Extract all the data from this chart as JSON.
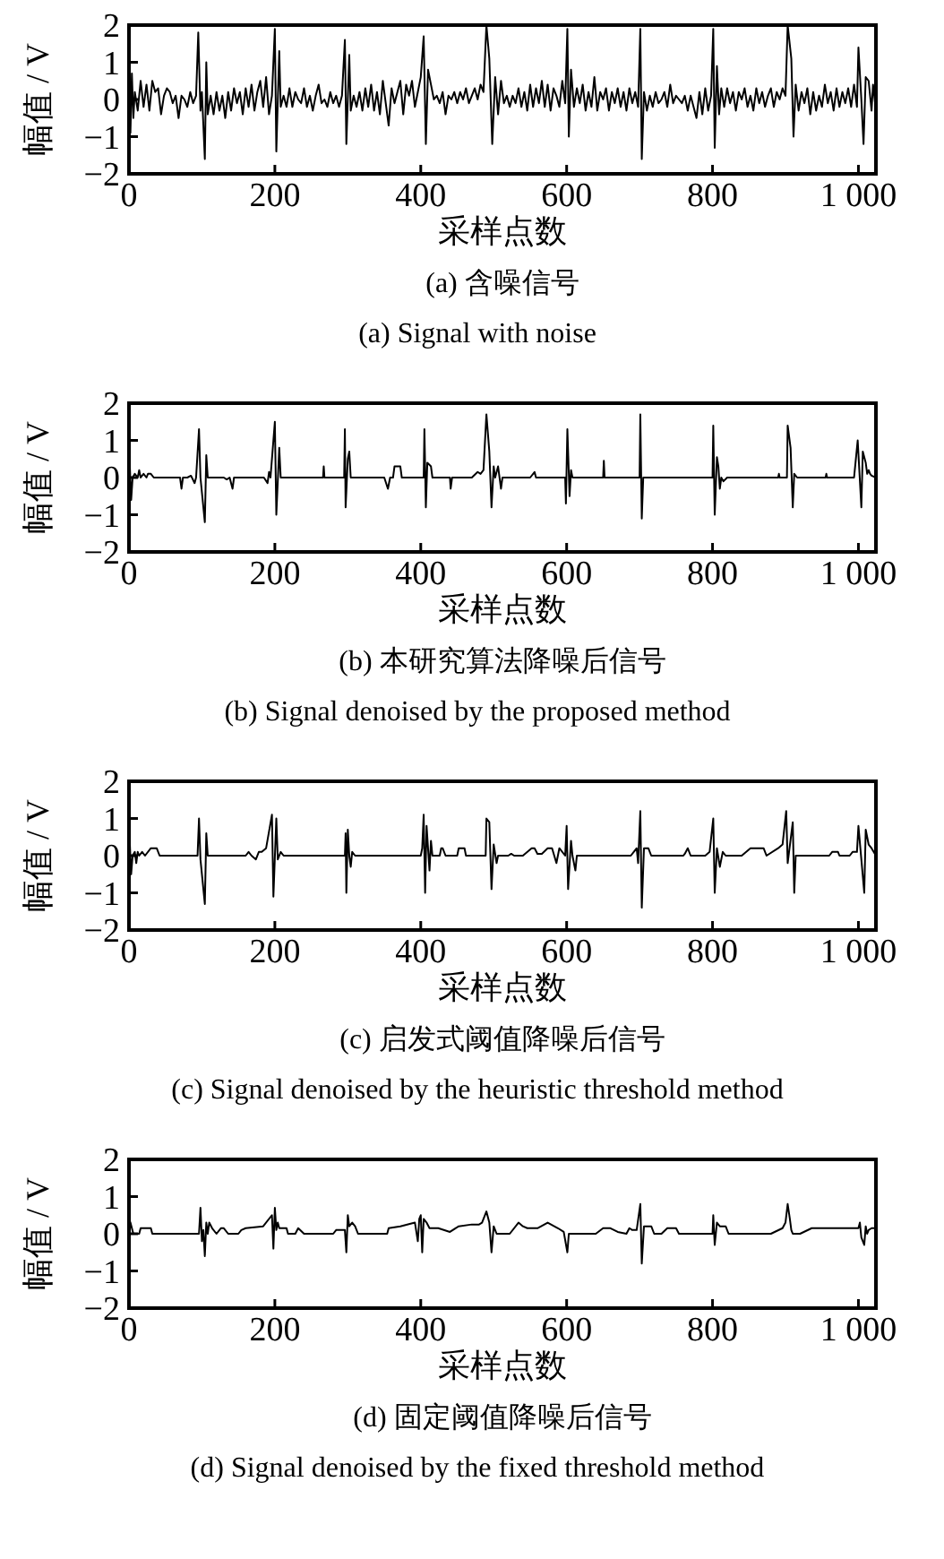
{
  "chart_data": [
    {
      "type": "line",
      "title": "(a)  含噪信号",
      "subtitle": "(a)  Signal with noise",
      "xlabel": "采样点数",
      "ylabel": "幅值 / V",
      "xlim": [
        0,
        1024
      ],
      "ylim": [
        -2,
        2
      ],
      "xticks": [
        0,
        200,
        400,
        600,
        800,
        1000
      ],
      "yticks": [
        -2,
        -1,
        0,
        1,
        2
      ],
      "series": [
        {
          "color": "#000000",
          "x": [
            0,
            2,
            4,
            6,
            8,
            12,
            16,
            20,
            24,
            28,
            32,
            36,
            40,
            44,
            48,
            52,
            56,
            60,
            64,
            68,
            72,
            76,
            80,
            84,
            88,
            92,
            95,
            98,
            100,
            104,
            106,
            108,
            112,
            116,
            120,
            124,
            128,
            132,
            136,
            140,
            144,
            148,
            152,
            156,
            160,
            164,
            168,
            172,
            176,
            180,
            184,
            188,
            192,
            196,
            200,
            202,
            206,
            208,
            212,
            216,
            220,
            224,
            228,
            232,
            236,
            240,
            244,
            248,
            252,
            256,
            260,
            264,
            268,
            272,
            276,
            280,
            284,
            288,
            292,
            296,
            298,
            302,
            304,
            308,
            312,
            316,
            320,
            324,
            328,
            332,
            336,
            340,
            344,
            348,
            352,
            356,
            360,
            364,
            368,
            372,
            376,
            380,
            384,
            388,
            392,
            396,
            400,
            404,
            407,
            410,
            414,
            418,
            422,
            426,
            430,
            434,
            438,
            442,
            446,
            450,
            454,
            458,
            462,
            466,
            470,
            474,
            478,
            482,
            486,
            490,
            494,
            498,
            502,
            506,
            510,
            514,
            518,
            522,
            526,
            530,
            534,
            538,
            542,
            546,
            550,
            554,
            558,
            562,
            566,
            570,
            574,
            578,
            582,
            586,
            590,
            594,
            598,
            601,
            603,
            606,
            610,
            614,
            618,
            622,
            626,
            630,
            634,
            638,
            642,
            646,
            650,
            654,
            658,
            662,
            666,
            670,
            674,
            678,
            682,
            686,
            690,
            694,
            698,
            701,
            703,
            706,
            710,
            714,
            718,
            722,
            726,
            730,
            734,
            738,
            742,
            746,
            750,
            754,
            758,
            762,
            766,
            770,
            774,
            778,
            782,
            786,
            790,
            794,
            798,
            801,
            803,
            806,
            809,
            812,
            816,
            820,
            824,
            828,
            832,
            836,
            840,
            844,
            848,
            852,
            856,
            860,
            864,
            868,
            872,
            876,
            880,
            884,
            888,
            892,
            896,
            900,
            903,
            908,
            911,
            914,
            918,
            922,
            926,
            930,
            934,
            938,
            942,
            946,
            950,
            954,
            958,
            962,
            966,
            970,
            974,
            978,
            982,
            986,
            990,
            994,
            998,
            1000,
            1004,
            1007,
            1010,
            1014,
            1018,
            1020,
            1024
          ],
          "values": [
            0,
            -0.9,
            0.7,
            -0.5,
            0.2,
            -0.3,
            0.5,
            -0.2,
            0.4,
            -0.3,
            0.5,
            0.2,
            0.3,
            -0.4,
            0.1,
            0.3,
            0.2,
            -0.1,
            0.1,
            -0.5,
            0.1,
            0,
            -0.2,
            0.2,
            -0.1,
            0.1,
            1.8,
            -0.3,
            0.2,
            -1.6,
            1.0,
            -0.4,
            0.1,
            -0.4,
            0.2,
            -0.3,
            0.1,
            -0.5,
            0.2,
            -0.3,
            0.3,
            -0.1,
            0.2,
            -0.4,
            0.3,
            -0.2,
            0.4,
            -0.3,
            0.2,
            0.5,
            -0.2,
            0.6,
            -0.4,
            0.1,
            1.9,
            -1.4,
            1.3,
            -0.2,
            0.1,
            -0.2,
            0.3,
            -0.2,
            0.2,
            0,
            -0.1,
            0.3,
            -0.2,
            0.1,
            -0.3,
            0.1,
            0.4,
            -0.1,
            0,
            -0.2,
            0.2,
            -0.1,
            0.1,
            -0.2,
            0.1,
            1.6,
            -1.2,
            1.2,
            -0.3,
            0.1,
            -0.2,
            0.2,
            -0.3,
            0.3,
            -0.2,
            0.4,
            -0.3,
            0.2,
            -0.4,
            0.5,
            -0.1,
            -0.7,
            0.3,
            -0.1,
            0.2,
            0.5,
            -0.4,
            0.4,
            0.1,
            0.5,
            -0.2,
            0.2,
            0.6,
            1.7,
            -1.2,
            0.8,
            0.4,
            0,
            0.1,
            -0.1,
            0.2,
            -0.4,
            0.1,
            0,
            0.2,
            -0.1,
            0.2,
            0,
            0.3,
            -0.1,
            0.1,
            0.3,
            0,
            0.4,
            0.2,
            2,
            1.1,
            -1.2,
            0.6,
            -0.4,
            0.5,
            -0.1,
            0.1,
            -0.2,
            0.1,
            -0.1,
            0.3,
            -0.2,
            0.2,
            -0.3,
            0.4,
            -0.2,
            0.3,
            -0.1,
            0.5,
            -0.2,
            0.4,
            -0.3,
            0.3,
            0.1,
            -0.2,
            0.5,
            -0.1,
            1.9,
            -1.0,
            0.8,
            -0.2,
            0.3,
            -0.1,
            0.4,
            -0.3,
            0.2,
            -0.2,
            0.6,
            -0.3,
            0.2,
            0,
            0.3,
            -0.3,
            0.2,
            -0.1,
            0.3,
            -0.2,
            0.2,
            -0.3,
            0.3,
            -0.1,
            0.2,
            -0.2,
            1.9,
            -1.6,
            0.2,
            -0.3,
            0.1,
            -0.2,
            0.2,
            -0.1,
            0,
            0.2,
            -0.2,
            0.4,
            -0.1,
            0.1,
            0,
            -0.1,
            0.1,
            -0.3,
            0.1,
            -0.2,
            -0.5,
            0.2,
            -0.4,
            0.3,
            -0.3,
            0.1,
            1.9,
            -1.3,
            0.9,
            -0.4,
            0.3,
            -0.2,
            0.3,
            -0.1,
            0.2,
            -0.3,
            0.2,
            0,
            0.3,
            -0.2,
            0.1,
            -0.3,
            0.3,
            -0.1,
            0.2,
            -0.2,
            0.1,
            0.3,
            -0.2,
            0.2,
            0,
            0.3,
            0.1,
            2.0,
            1.1,
            -1.0,
            0.4,
            -0.3,
            0.2,
            -0.1,
            0.3,
            -0.4,
            0.2,
            -0.3,
            0.1,
            -0.2,
            0.4,
            -0.1,
            0.2,
            -0.3,
            0.3,
            -0.2,
            0.2,
            -0.1,
            0.3,
            -0.2,
            0.4,
            -0.2,
            1.4,
            0,
            -1.2,
            0.6,
            0.5,
            -0.3,
            0.4,
            -0.3
          ]
        }
      ]
    },
    {
      "type": "line",
      "title": "(b)  本研究算法降噪后信号",
      "subtitle": "(b)  Signal denoised by the proposed method",
      "xlabel": "采样点数",
      "ylabel": "幅值 / V",
      "xlim": [
        0,
        1024
      ],
      "ylim": [
        -2,
        2
      ],
      "xticks": [
        0,
        200,
        400,
        600,
        800,
        1000
      ],
      "yticks": [
        -2,
        -1,
        0,
        1,
        2
      ],
      "series": [
        {
          "color": "#000000",
          "x": [
            0,
            1,
            3,
            5,
            8,
            12,
            14,
            16,
            20,
            24,
            26,
            30,
            34,
            70,
            72,
            74,
            80,
            85,
            90,
            92,
            96,
            98,
            104,
            106,
            108,
            130,
            134,
            138,
            142,
            144,
            185,
            190,
            192,
            194,
            200,
            202,
            206,
            208,
            266,
            267,
            268,
            295,
            296,
            297,
            300,
            302,
            304,
            350,
            355,
            358,
            362,
            364,
            372,
            374,
            404,
            405,
            407,
            409,
            414,
            416,
            440,
            441,
            443,
            470,
            478,
            482,
            486,
            490,
            494,
            497,
            500,
            502,
            506,
            510,
            512,
            550,
            556,
            558,
            598,
            599,
            601,
            604,
            606,
            608,
            650,
            651,
            652,
            700,
            701,
            703,
            705,
            800,
            801,
            803,
            806,
            808,
            810,
            812,
            815,
            820,
            890,
            891,
            892,
            902,
            903,
            907,
            910,
            912,
            916,
            955,
            956,
            957,
            994,
            999,
            1004,
            1006,
            1010,
            1012,
            1014,
            1016,
            1018,
            1024
          ],
          "values": [
            0,
            0.4,
            -0.6,
            0,
            0.1,
            0,
            0.2,
            0,
            0.1,
            0,
            0.1,
            0.1,
            0,
            0,
            -0.3,
            0,
            0,
            0.05,
            -0.15,
            0,
            1.3,
            0,
            -1.2,
            0.6,
            0,
            0,
            -0.05,
            0,
            -0.3,
            0,
            0,
            -0.15,
            0.15,
            0,
            1.5,
            -1.0,
            0.8,
            0,
            0,
            0.3,
            0,
            0,
            1.3,
            -0.8,
            0.5,
            0.7,
            0,
            0,
            -0.3,
            0,
            0,
            0.3,
            0.3,
            0,
            0,
            1.3,
            -0.8,
            0.4,
            0.3,
            0,
            0,
            -0.3,
            0,
            0,
            0.15,
            0.1,
            0.2,
            1.7,
            0.7,
            -0.8,
            0.3,
            0,
            0.3,
            -0.3,
            0,
            0,
            0.15,
            0,
            0,
            -0.7,
            1.3,
            -0.5,
            0.2,
            0,
            0,
            0.45,
            0,
            0,
            1.7,
            -1.1,
            0,
            0,
            1.4,
            -1.0,
            0.55,
            0.3,
            -0.3,
            0,
            -0.1,
            0,
            0,
            0.1,
            0,
            0,
            1.4,
            0.8,
            -0.8,
            0.1,
            0,
            0,
            0.1,
            0,
            0,
            1.0,
            -0.8,
            0.7,
            0.4,
            0.1,
            0.2,
            0.1,
            0.05,
            0
          ]
        }
      ]
    },
    {
      "type": "line",
      "title": "(c)  启发式阈值降噪后信号",
      "subtitle": "(c)  Signal denoised by the heuristic threshold method",
      "xlabel": "采样点数",
      "ylabel": "幅值 / V",
      "xlim": [
        0,
        1024
      ],
      "ylim": [
        -2,
        2
      ],
      "xticks": [
        0,
        200,
        400,
        600,
        800,
        1000
      ],
      "yticks": [
        -2,
        -1,
        0,
        1,
        2
      ],
      "series": [
        {
          "color": "#000000",
          "x": [
            0,
            1,
            3,
            5,
            8,
            10,
            12,
            14,
            18,
            22,
            30,
            38,
            42,
            94,
            96,
            98,
            104,
            106,
            108,
            115,
            160,
            164,
            168,
            174,
            178,
            182,
            188,
            196,
            198,
            202,
            204,
            208,
            212,
            296,
            297,
            298,
            300,
            302,
            304,
            306,
            310,
            400,
            402,
            404,
            406,
            408,
            412,
            414,
            416,
            426,
            428,
            430,
            434,
            450,
            452,
            460,
            462,
            489,
            490,
            494,
            497,
            500,
            504,
            506,
            520,
            524,
            528,
            540,
            552,
            556,
            560,
            566,
            574,
            580,
            586,
            590,
            598,
            600,
            602,
            606,
            608,
            612,
            614,
            628,
            640,
            688,
            692,
            696,
            698,
            701,
            703,
            706,
            712,
            716,
            760,
            762,
            766,
            770,
            790,
            796,
            801,
            803,
            806,
            810,
            814,
            818,
            840,
            852,
            870,
            874,
            890,
            896,
            901,
            903,
            910,
            912,
            914,
            920,
            960,
            964,
            972,
            974,
            988,
            992,
            998,
            1000,
            1004,
            1008,
            1010,
            1014,
            1018,
            1024
          ],
          "values": [
            0,
            0.4,
            -0.5,
            0,
            0.1,
            -0.2,
            0.1,
            0,
            0.1,
            0,
            0.2,
            0.2,
            0,
            0,
            1.0,
            -0.1,
            -1.3,
            0.6,
            0,
            0,
            0,
            0.1,
            0,
            -0.1,
            0.1,
            0.1,
            0.2,
            1.1,
            -1.1,
            1.0,
            -0.1,
            0.1,
            0,
            0,
            0.6,
            -1.0,
            0.7,
            0,
            -0.3,
            0.1,
            0,
            0,
            0.2,
            1.1,
            -1.0,
            0.8,
            -0.4,
            0.4,
            0,
            0,
            0.2,
            0.2,
            0,
            0,
            0.2,
            0.2,
            0,
            0,
            1.0,
            0.9,
            -0.9,
            0.3,
            -0.2,
            0,
            0,
            0.05,
            0,
            0,
            0.2,
            0.2,
            0.05,
            0.05,
            0.2,
            0.2,
            -0.2,
            0.2,
            0,
            0.8,
            -0.9,
            0.4,
            0,
            -0.4,
            0,
            0,
            0,
            0,
            0.1,
            0.2,
            -0.2,
            1.2,
            -1.4,
            0.2,
            0.2,
            0,
            0,
            0.05,
            0.2,
            0,
            0,
            0.1,
            1.0,
            -1.0,
            0.2,
            -0.3,
            0.1,
            0,
            0,
            0.2,
            0.2,
            0,
            0.2,
            0.3,
            1.2,
            -0.2,
            0.9,
            -1.0,
            0,
            0,
            0,
            0.1,
            0.1,
            0,
            0,
            0.1,
            0.1,
            0.8,
            -0.1,
            -1.0,
            0.7,
            0.3,
            0.2,
            0
          ]
        }
      ]
    },
    {
      "type": "line",
      "title": "(d)  固定阈值降噪后信号",
      "subtitle": "(d)  Signal denoised by the fixed threshold method",
      "xlabel": "采样点数",
      "ylabel": "幅值 / V",
      "xlim": [
        0,
        1024
      ],
      "ylim": [
        -2,
        2
      ],
      "xticks": [
        0,
        200,
        400,
        600,
        800,
        1000
      ],
      "yticks": [
        -2,
        -1,
        0,
        1,
        2
      ],
      "series": [
        {
          "color": "#000000",
          "x": [
            0,
            2,
            6,
            14,
            16,
            30,
            32,
            96,
            98,
            100,
            102,
            104,
            106,
            108,
            110,
            114,
            120,
            126,
            130,
            136,
            150,
            154,
            160,
            184,
            196,
            198,
            200,
            202,
            204,
            206,
            216,
            218,
            228,
            232,
            240,
            280,
            284,
            296,
            298,
            300,
            302,
            306,
            310,
            314,
            354,
            356,
            372,
            392,
            396,
            398,
            400,
            402,
            404,
            408,
            412,
            424,
            440,
            452,
            470,
            480,
            484,
            490,
            494,
            497,
            500,
            504,
            522,
            534,
            540,
            546,
            560,
            574,
            588,
            596,
            601,
            603,
            612,
            640,
            650,
            660,
            670,
            682,
            686,
            690,
            696,
            701,
            703,
            706,
            716,
            720,
            730,
            738,
            750,
            754,
            800,
            801,
            803,
            806,
            810,
            818,
            822,
            880,
            896,
            900,
            903,
            906,
            908,
            910,
            920,
            936,
            1000,
            1002,
            1004,
            1008,
            1010,
            1012,
            1014,
            1018,
            1024
          ],
          "values": [
            0.4,
            0.3,
            0,
            0,
            0.15,
            0.15,
            0,
            0,
            0.7,
            -0.2,
            0.1,
            -0.6,
            0.3,
            0,
            0.3,
            0.15,
            0,
            0.15,
            0.15,
            0,
            0,
            0.1,
            0.15,
            0.2,
            0.5,
            -0.4,
            0.7,
            0.1,
            0.3,
            0.15,
            0.15,
            0,
            0,
            0.15,
            0,
            0,
            0.1,
            0.1,
            -0.5,
            0.5,
            0.2,
            0.3,
            0.2,
            0,
            0,
            0.15,
            0.2,
            0.3,
            -0.2,
            0.4,
            0.5,
            -0.5,
            0.4,
            0.3,
            0.15,
            0.15,
            0.05,
            0.2,
            0.25,
            0.25,
            0.3,
            0.6,
            0.3,
            -0.5,
            0.2,
            0,
            0,
            0.3,
            0.2,
            0.15,
            0.15,
            0.3,
            0.15,
            0.05,
            -0.5,
            0,
            0,
            0,
            0.15,
            0.15,
            0.05,
            0,
            0.15,
            0.1,
            0.1,
            0.8,
            -0.8,
            0.2,
            0.2,
            0,
            0,
            0.15,
            0.15,
            0,
            0,
            0.5,
            -0.3,
            0.3,
            0.2,
            0.2,
            0,
            0,
            0.15,
            0.3,
            0.8,
            0.4,
            0.1,
            0,
            0,
            0.15,
            0.15,
            0.3,
            -0.1,
            -0.3,
            0.2,
            0,
            0.1,
            0.15,
            0.15
          ]
        }
      ]
    }
  ]
}
